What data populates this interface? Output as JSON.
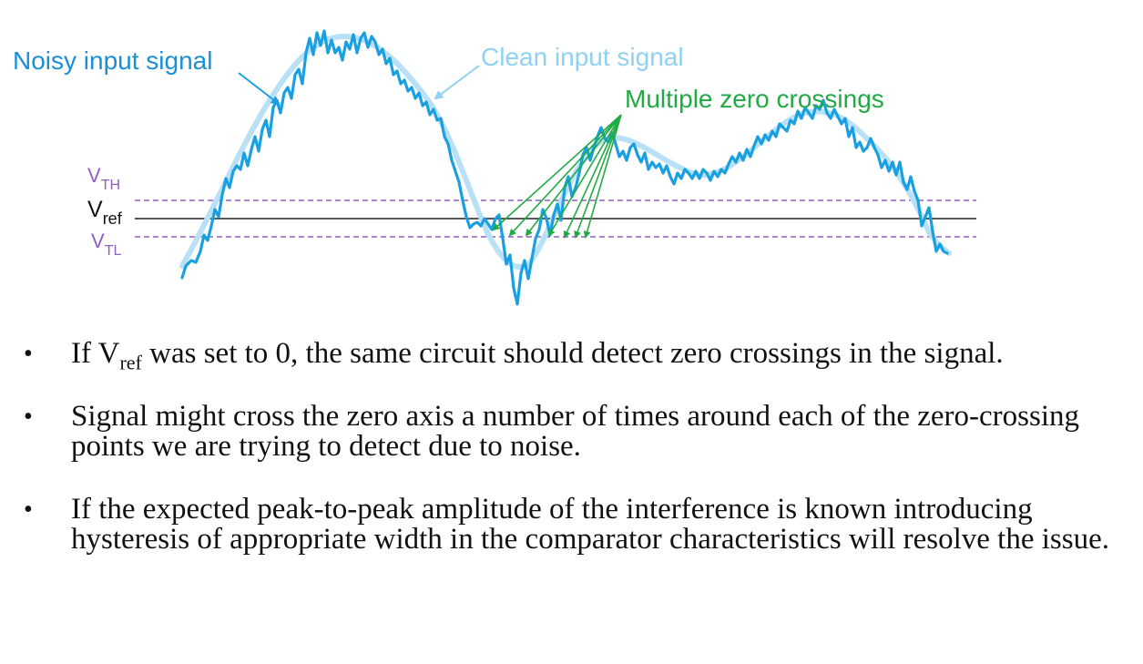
{
  "diagram": {
    "labels": {
      "noisy": "Noisy input signal",
      "clean": "Clean input signal",
      "multiple": "Multiple zero crossings",
      "vth_main": "V",
      "vth_sub": "TH",
      "vref_main": "V",
      "vref_sub": "ref",
      "vtl_main": "V",
      "vtl_sub": "TL"
    },
    "colors": {
      "noisy": "#1aa0e0",
      "clean": "#b8e0f6",
      "annotation": "#22aa44",
      "threshold": "#9060c0",
      "reference": "#222222",
      "label_blue": "#1a8fd8",
      "label_light": "#8fd0f4"
    }
  },
  "bullets": [
    {
      "pre": "If V",
      "sub": "ref",
      "post": " was set to 0, the same circuit should detect zero crossings in the signal."
    },
    {
      "text": "Signal might cross the zero axis a number of times around each of the zero-crossing points we are trying to detect due to noise."
    },
    {
      "text": "If the expected peak-to-peak amplitude of the interference is known introducing hysteresis of appropriate width in the comparator characteristics will resolve the issue."
    }
  ]
}
